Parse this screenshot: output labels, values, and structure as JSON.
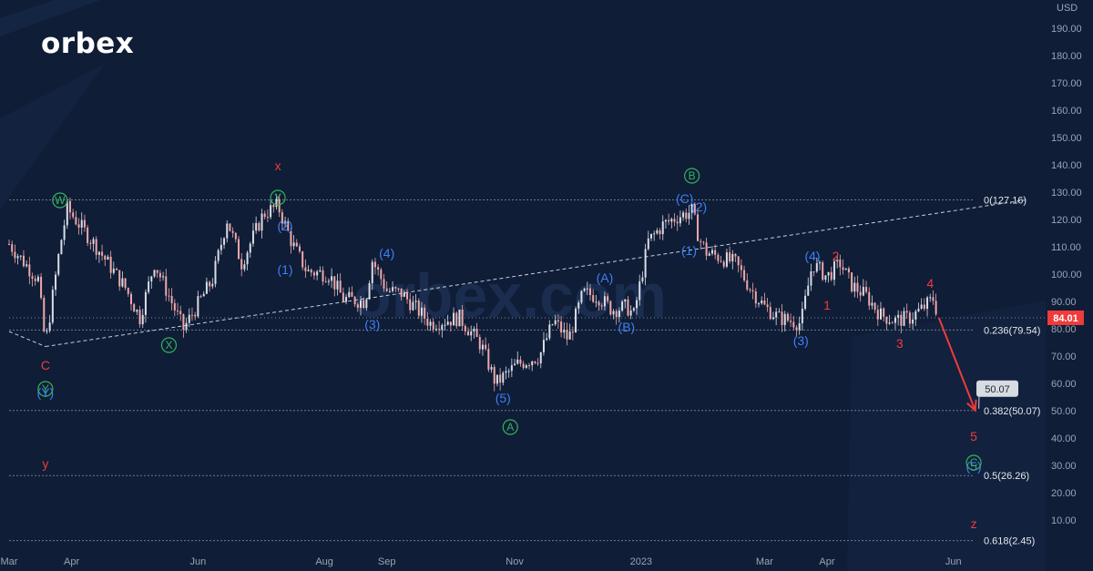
{
  "brand": {
    "logo_text": "orbex",
    "watermark": "orbex.com"
  },
  "colors": {
    "background": "#0f1d37",
    "candle_up": "#d9dde6",
    "candle_down": "#f0a8a8",
    "wave_blue": "#3f7ff3",
    "wave_red": "#ef3b3b",
    "wave_green": "#35b45c",
    "fib_line": "#6f7a8d",
    "price_tag": "#ef3b3b",
    "arrow": "#ef3b3b"
  },
  "chart_data": {
    "type": "candlestick",
    "currency_label": "USD",
    "y_range": [
      0,
      195
    ],
    "y_ticks": [
      "10.00",
      "20.00",
      "30.00",
      "40.00",
      "50.00",
      "60.00",
      "70.00",
      "80.00",
      "90.00",
      "100.00",
      "110.00",
      "120.00",
      "130.00",
      "140.00",
      "150.00",
      "160.00",
      "170.00",
      "180.00",
      "190.00"
    ],
    "x_ticks": [
      {
        "label": "Mar",
        "week": 0
      },
      {
        "label": "Apr",
        "week": 4.3
      },
      {
        "label": "Jun",
        "week": 13
      },
      {
        "label": "Aug",
        "week": 21.7
      },
      {
        "label": "Sep",
        "week": 26
      },
      {
        "label": "Nov",
        "week": 34.8
      },
      {
        "label": "2023",
        "week": 43.5
      },
      {
        "label": "Mar",
        "week": 52
      },
      {
        "label": "Apr",
        "week": 56.3
      },
      {
        "label": "Jun",
        "week": 65
      }
    ],
    "price_path": [
      {
        "week": 0,
        "price": 111
      },
      {
        "week": 2,
        "price": 98
      },
      {
        "week": 2.5,
        "price": 74
      },
      {
        "week": 3.5,
        "price": 110
      },
      {
        "week": 4,
        "price": 124
      },
      {
        "week": 6,
        "price": 110
      },
      {
        "week": 8,
        "price": 95
      },
      {
        "week": 9,
        "price": 84
      },
      {
        "week": 10,
        "price": 104
      },
      {
        "week": 12,
        "price": 80
      },
      {
        "week": 14,
        "price": 98
      },
      {
        "week": 15,
        "price": 120
      },
      {
        "week": 16,
        "price": 104
      },
      {
        "week": 17.5,
        "price": 122
      },
      {
        "week": 18.5,
        "price": 125
      },
      {
        "week": 19.5,
        "price": 111
      },
      {
        "week": 20.5,
        "price": 101
      },
      {
        "week": 22,
        "price": 100
      },
      {
        "week": 23,
        "price": 91
      },
      {
        "week": 24.5,
        "price": 90
      },
      {
        "week": 25,
        "price": 105
      },
      {
        "week": 26,
        "price": 94
      },
      {
        "week": 27,
        "price": 93
      },
      {
        "week": 29,
        "price": 82
      },
      {
        "week": 31,
        "price": 84
      },
      {
        "week": 32.5,
        "price": 74
      },
      {
        "week": 33.5,
        "price": 60
      },
      {
        "week": 35,
        "price": 67
      },
      {
        "week": 36.5,
        "price": 70
      },
      {
        "week": 37.5,
        "price": 83
      },
      {
        "week": 38.5,
        "price": 76
      },
      {
        "week": 39.5,
        "price": 93
      },
      {
        "week": 40.5,
        "price": 92
      },
      {
        "week": 41.5,
        "price": 87
      },
      {
        "week": 42.5,
        "price": 88
      },
      {
        "week": 43,
        "price": 85
      },
      {
        "week": 44,
        "price": 112
      },
      {
        "week": 45,
        "price": 118
      },
      {
        "week": 46,
        "price": 121
      },
      {
        "week": 47,
        "price": 123
      },
      {
        "week": 47.5,
        "price": 113
      },
      {
        "week": 48,
        "price": 108
      },
      {
        "week": 50,
        "price": 104
      },
      {
        "week": 51,
        "price": 95
      },
      {
        "week": 52,
        "price": 88
      },
      {
        "week": 53,
        "price": 84
      },
      {
        "week": 54.5,
        "price": 82
      },
      {
        "week": 55.3,
        "price": 104
      },
      {
        "week": 56.3,
        "price": 99
      },
      {
        "week": 57.2,
        "price": 104
      },
      {
        "week": 58,
        "price": 96
      },
      {
        "week": 59,
        "price": 92
      },
      {
        "week": 60,
        "price": 85
      },
      {
        "week": 61,
        "price": 83
      },
      {
        "week": 62,
        "price": 84
      },
      {
        "week": 63,
        "price": 88
      },
      {
        "week": 63.6,
        "price": 91
      },
      {
        "week": 64,
        "price": 84
      }
    ],
    "fibonacci": [
      {
        "label": "0(127.16)",
        "price": 127.16
      },
      {
        "label": "0.236(79.54)",
        "price": 79.54
      },
      {
        "label": "0.382(50.07)",
        "price": 50.07
      },
      {
        "label": "0.5(26.26)",
        "price": 26.26
      },
      {
        "label": "0.618(2.45)",
        "price": 2.45
      }
    ],
    "trendline": [
      {
        "week": 2.5,
        "price": 73.5
      },
      {
        "week": 70,
        "price": 127.16
      }
    ],
    "current_price": {
      "label": "84.01",
      "price": 84.01
    },
    "target": {
      "label": "50.07",
      "price": 50.07,
      "from_week": 64.0,
      "from_price": 84.0,
      "to_week": 66.5
    },
    "wave_labels": [
      {
        "text": "x",
        "week": 18.5,
        "price": 138,
        "color": "red"
      },
      {
        "text": "C",
        "week": 2.5,
        "price": 65,
        "color": "red"
      },
      {
        "text": "(Y)",
        "week": 2.5,
        "price": 55,
        "color": "blue"
      },
      {
        "text": "y",
        "week": 2.5,
        "price": 29,
        "color": "red"
      },
      {
        "text": "(2)",
        "week": 19,
        "price": 116,
        "color": "blue"
      },
      {
        "text": "(1)",
        "week": 19,
        "price": 100,
        "color": "blue"
      },
      {
        "text": "(4)",
        "week": 26,
        "price": 106,
        "color": "blue"
      },
      {
        "text": "(3)",
        "week": 25,
        "price": 80,
        "color": "blue"
      },
      {
        "text": "(5)",
        "week": 34,
        "price": 53,
        "color": "blue"
      },
      {
        "text": "(A)",
        "week": 41,
        "price": 97,
        "color": "blue"
      },
      {
        "text": "(B)",
        "week": 42.5,
        "price": 79,
        "color": "blue"
      },
      {
        "text": "(C)",
        "week": 46.5,
        "price": 126,
        "color": "blue"
      },
      {
        "text": "(2)",
        "week": 47.5,
        "price": 123,
        "color": "blue"
      },
      {
        "text": "(1)",
        "week": 46.8,
        "price": 107,
        "color": "blue"
      },
      {
        "text": "(4)",
        "week": 55.3,
        "price": 105,
        "color": "blue"
      },
      {
        "text": "(3)",
        "week": 54.5,
        "price": 74,
        "color": "blue"
      },
      {
        "text": "2",
        "week": 56.9,
        "price": 105,
        "color": "red"
      },
      {
        "text": "1",
        "week": 56.3,
        "price": 87,
        "color": "red"
      },
      {
        "text": "4",
        "week": 63.4,
        "price": 95,
        "color": "red"
      },
      {
        "text": "3",
        "week": 61.3,
        "price": 73,
        "color": "red"
      },
      {
        "text": "5",
        "week": 66.4,
        "price": 39,
        "color": "red"
      },
      {
        "text": "(5)",
        "week": 66.4,
        "price": 28,
        "color": "blue"
      },
      {
        "text": "z",
        "week": 66.4,
        "price": 7,
        "color": "red"
      }
    ],
    "circled_labels": [
      {
        "text": "W",
        "week": 3.5,
        "price": 127
      },
      {
        "text": "Y",
        "week": 18.5,
        "price": 128
      },
      {
        "text": "X",
        "week": 11,
        "price": 74
      },
      {
        "text": "Y",
        "week": 2.5,
        "price": 58
      },
      {
        "text": "A",
        "week": 34.5,
        "price": 44
      },
      {
        "text": "B",
        "week": 47,
        "price": 136
      },
      {
        "text": "C",
        "week": 66.4,
        "price": 31
      }
    ]
  }
}
